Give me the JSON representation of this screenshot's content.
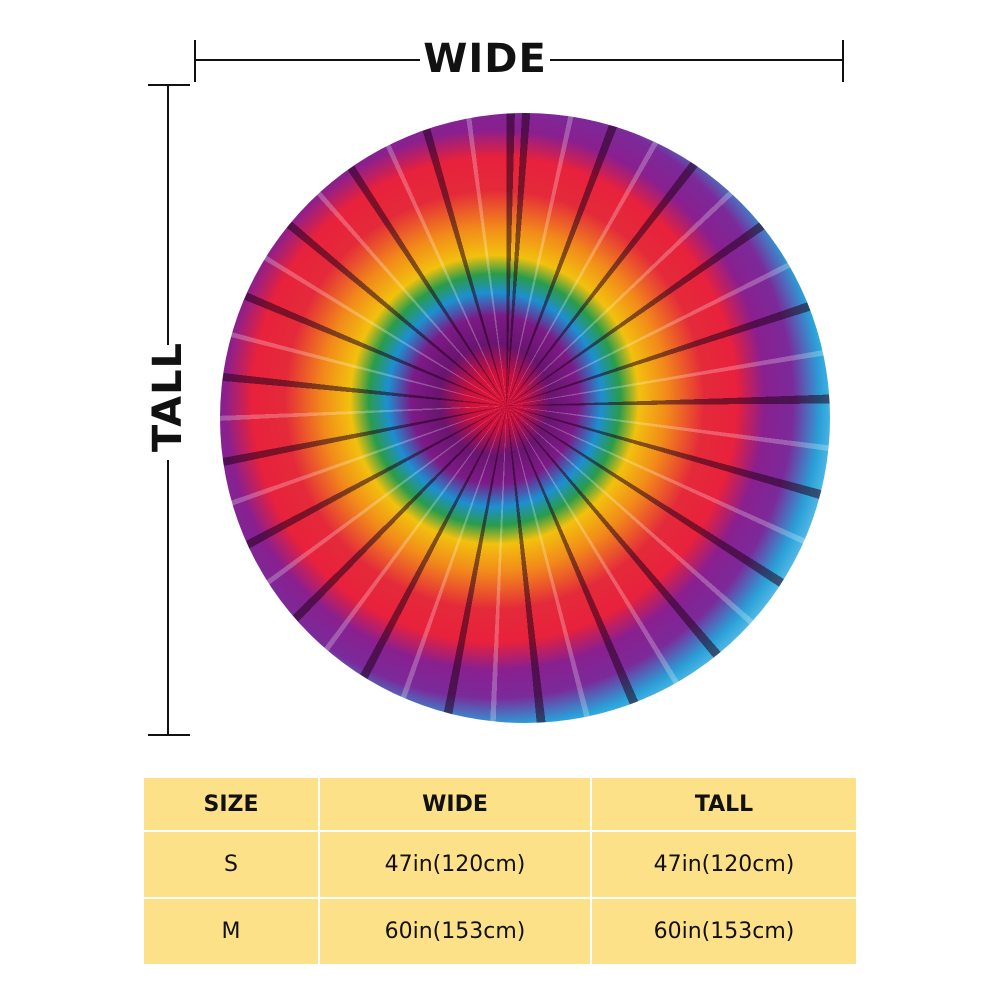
{
  "dimensions": {
    "wide": "WIDE",
    "tall": "TALL"
  },
  "table": {
    "header": [
      "SIZE",
      "WIDE",
      "TALL"
    ],
    "rows": [
      [
        "S",
        "47in(120cm)",
        "47in(120cm)"
      ],
      [
        "M",
        "60in(153cm)",
        "60in(153cm)"
      ]
    ]
  }
}
